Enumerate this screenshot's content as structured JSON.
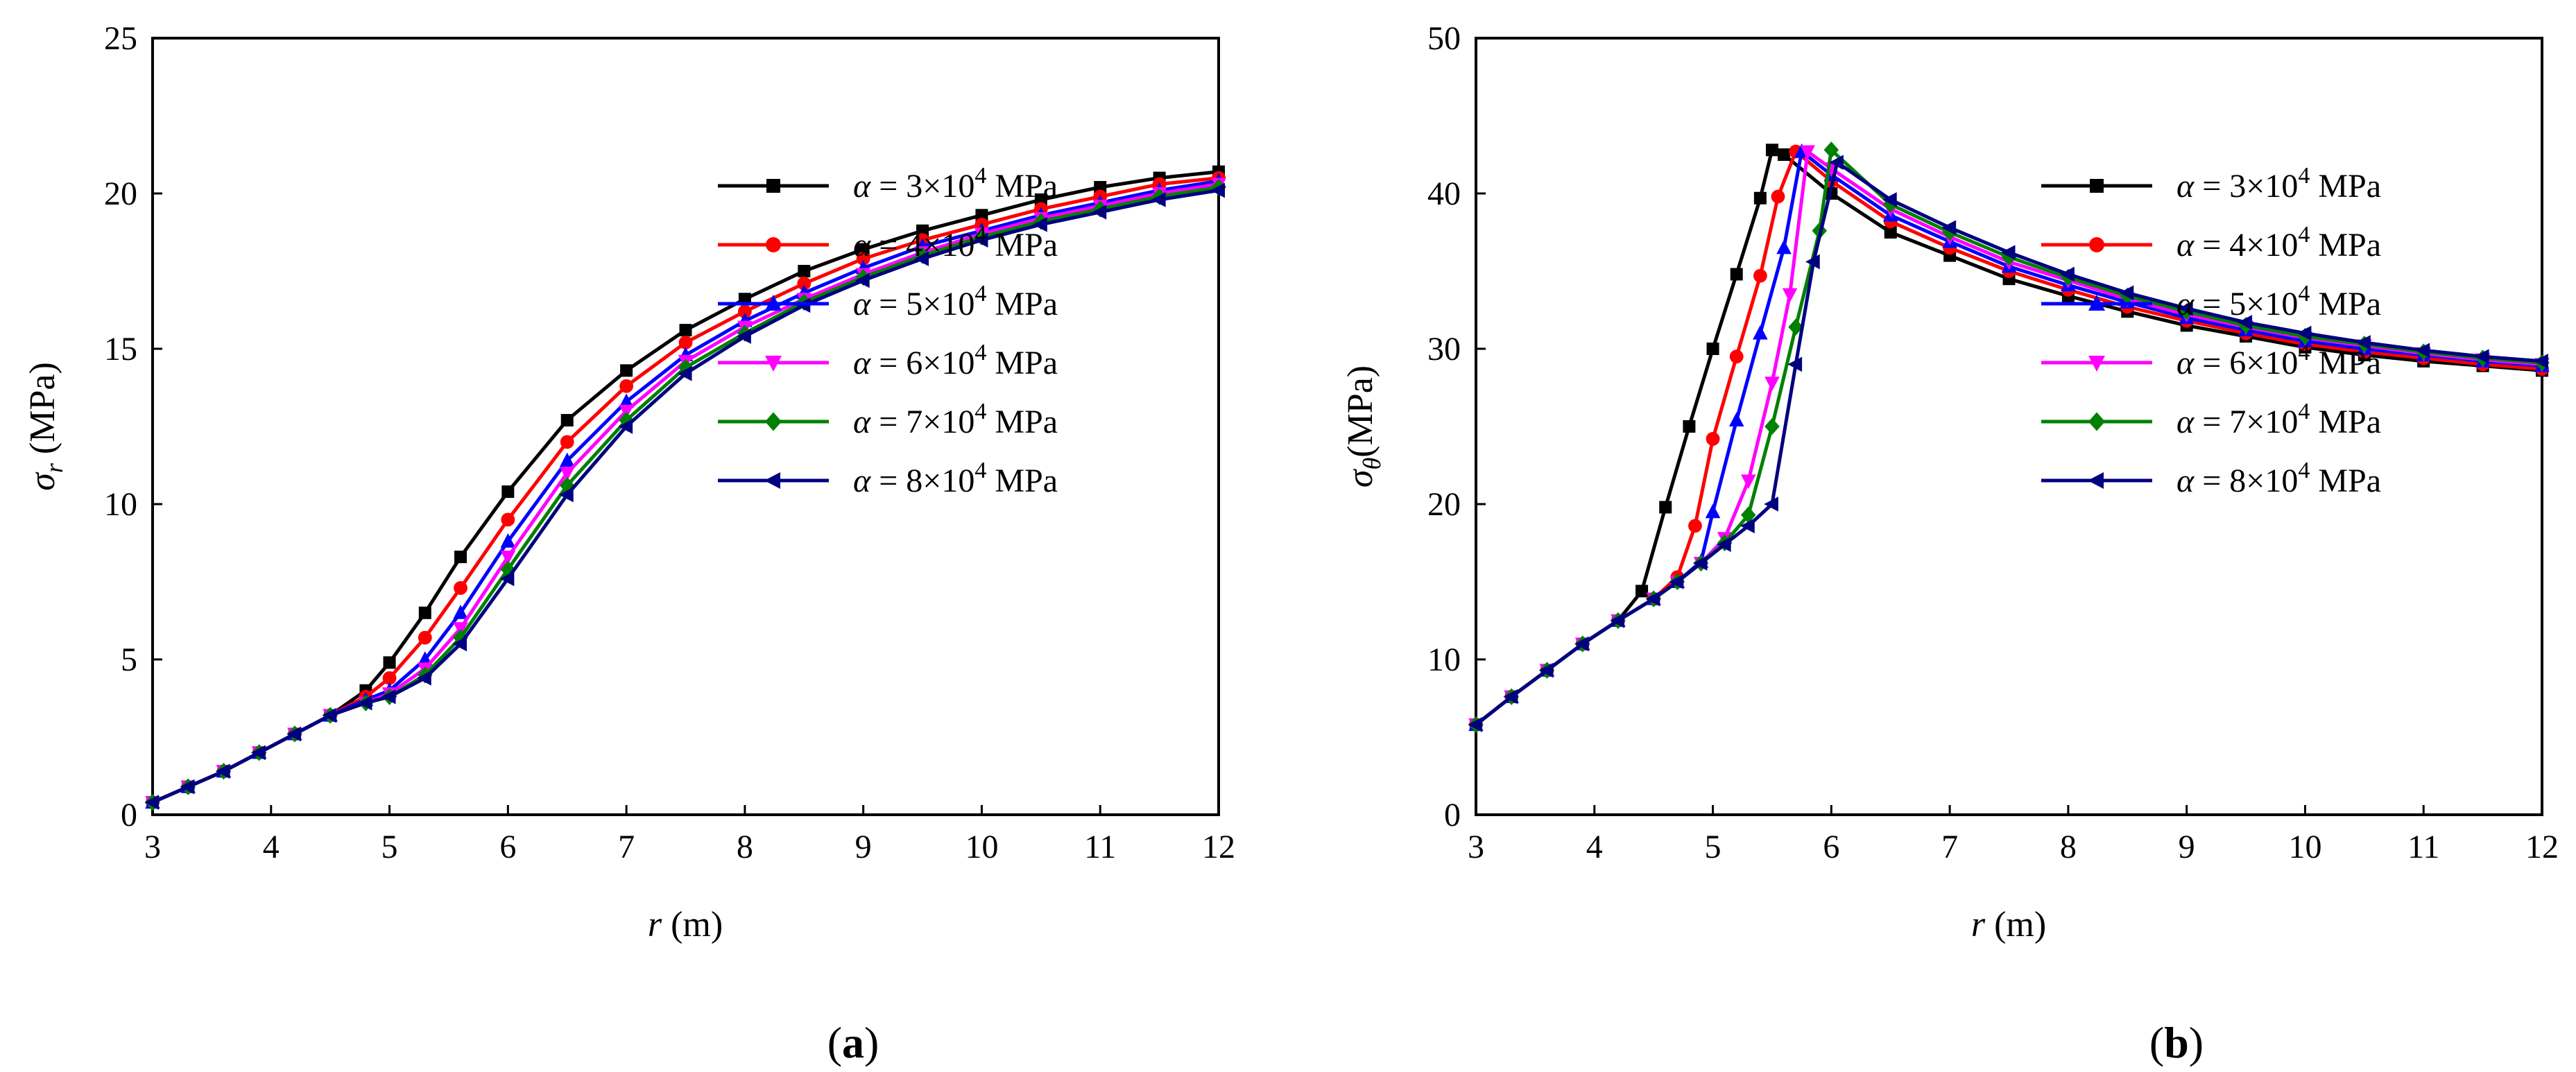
{
  "charts": [
    {
      "panel": "(a)",
      "panel_letter": "a",
      "ylabel_symbol": "σ",
      "ylabel_sub": "r",
      "ylabel_unit": " (MPa)",
      "xlabel_symbol": "r",
      "xlabel_unit": " (m)"
    },
    {
      "panel": "(b)",
      "panel_letter": "b",
      "ylabel_symbol": "σ",
      "ylabel_sub": "θ",
      "ylabel_unit": "(MPa)",
      "xlabel_symbol": "r",
      "xlabel_unit": " (m)"
    }
  ],
  "legend": [
    {
      "alpha_symbol": "α",
      "prefix": " = 3×10",
      "exp": "4",
      "unit": " MPa"
    },
    {
      "alpha_symbol": "α",
      "prefix": " = 4×10",
      "exp": "4",
      "unit": " MPa"
    },
    {
      "alpha_symbol": "α",
      "prefix": " = 5×10",
      "exp": "4",
      "unit": " MPa"
    },
    {
      "alpha_symbol": "α",
      "prefix": " = 6×10",
      "exp": "4",
      "unit": " MPa"
    },
    {
      "alpha_symbol": "α",
      "prefix": " = 7×10",
      "exp": "4",
      "unit": " MPa"
    },
    {
      "alpha_symbol": "α",
      "prefix": " = 8×10",
      "exp": "4",
      "unit": " MPa"
    }
  ],
  "chart_data": [
    {
      "type": "line",
      "title": "(a)",
      "xlabel": "r (m)",
      "ylabel": "σr (MPa)",
      "xlim": [
        3,
        12
      ],
      "ylim": [
        0,
        25
      ],
      "xticks": [
        "3",
        "4",
        "5",
        "6",
        "7",
        "8",
        "9",
        "10",
        "11",
        "12"
      ],
      "yticks": [
        "0",
        "5",
        "10",
        "15",
        "20",
        "25"
      ],
      "grid": false,
      "legend_position": "center-right",
      "series": [
        {
          "name": "α = 3×10⁴ MPa",
          "color": "#000000",
          "marker": "square",
          "x": [
            3,
            3.3,
            3.6,
            3.9,
            4.2,
            4.5,
            4.8,
            5.0,
            5.3,
            5.6,
            6.0,
            6.5,
            7.0,
            7.5,
            8.0,
            8.5,
            9.0,
            9.5,
            10.0,
            10.5,
            11.0,
            11.5,
            12.0
          ],
          "y": [
            0.4,
            0.9,
            1.4,
            2.0,
            2.6,
            3.2,
            4.0,
            4.9,
            6.5,
            8.3,
            10.4,
            12.7,
            14.3,
            15.6,
            16.6,
            17.5,
            18.2,
            18.8,
            19.3,
            19.8,
            20.2,
            20.5,
            20.7
          ]
        },
        {
          "name": "α = 4×10⁴ MPa",
          "color": "#ff0000",
          "marker": "circle",
          "x": [
            3,
            3.3,
            3.6,
            3.9,
            4.2,
            4.5,
            4.8,
            5.0,
            5.3,
            5.6,
            6.0,
            6.5,
            7.0,
            7.5,
            8.0,
            8.5,
            9.0,
            9.5,
            10.0,
            10.5,
            11.0,
            11.5,
            12.0
          ],
          "y": [
            0.4,
            0.9,
            1.4,
            2.0,
            2.6,
            3.2,
            3.8,
            4.4,
            5.7,
            7.3,
            9.5,
            12.0,
            13.8,
            15.2,
            16.2,
            17.1,
            17.9,
            18.5,
            19.0,
            19.5,
            19.9,
            20.3,
            20.5
          ]
        },
        {
          "name": "α = 5×10⁴ MPa",
          "color": "#0000ff",
          "marker": "triangle-up",
          "x": [
            3,
            3.3,
            3.6,
            3.9,
            4.2,
            4.5,
            4.8,
            5.0,
            5.3,
            5.6,
            6.0,
            6.5,
            7.0,
            7.5,
            8.0,
            8.5,
            9.0,
            9.5,
            10.0,
            10.5,
            11.0,
            11.5,
            12.0
          ],
          "y": [
            0.4,
            0.9,
            1.4,
            2.0,
            2.6,
            3.2,
            3.7,
            4.0,
            5.0,
            6.5,
            8.8,
            11.4,
            13.3,
            14.8,
            15.9,
            16.8,
            17.6,
            18.3,
            18.8,
            19.3,
            19.7,
            20.1,
            20.4
          ]
        },
        {
          "name": "α = 6×10⁴ MPa",
          "color": "#ff00ff",
          "marker": "triangle-down",
          "x": [
            3,
            3.3,
            3.6,
            3.9,
            4.2,
            4.5,
            4.8,
            5.0,
            5.3,
            5.6,
            6.0,
            6.5,
            7.0,
            7.5,
            8.0,
            8.5,
            9.0,
            9.5,
            10.0,
            10.5,
            11.0,
            11.5,
            12.0
          ],
          "y": [
            0.4,
            0.9,
            1.4,
            2.0,
            2.6,
            3.2,
            3.6,
            3.9,
            4.7,
            6.0,
            8.3,
            11.0,
            13.0,
            14.6,
            15.7,
            16.6,
            17.4,
            18.1,
            18.7,
            19.2,
            19.6,
            20.0,
            20.3
          ]
        },
        {
          "name": "α = 7×10⁴ MPa",
          "color": "#008000",
          "marker": "diamond",
          "x": [
            3,
            3.3,
            3.6,
            3.9,
            4.2,
            4.5,
            4.8,
            5.0,
            5.3,
            5.6,
            6.0,
            6.5,
            7.0,
            7.5,
            8.0,
            8.5,
            9.0,
            9.5,
            10.0,
            10.5,
            11.0,
            11.5,
            12.0
          ],
          "y": [
            0.4,
            0.9,
            1.4,
            2.0,
            2.6,
            3.2,
            3.6,
            3.8,
            4.5,
            5.7,
            7.9,
            10.6,
            12.7,
            14.4,
            15.5,
            16.5,
            17.3,
            18.0,
            18.6,
            19.1,
            19.5,
            19.9,
            20.2
          ]
        },
        {
          "name": "α = 8×10⁴ MPa",
          "color": "#000080",
          "marker": "triangle-left",
          "x": [
            3,
            3.3,
            3.6,
            3.9,
            4.2,
            4.5,
            4.8,
            5.0,
            5.3,
            5.6,
            6.0,
            6.5,
            7.0,
            7.5,
            8.0,
            8.5,
            9.0,
            9.5,
            10.0,
            10.5,
            11.0,
            11.5,
            12.0
          ],
          "y": [
            0.4,
            0.9,
            1.4,
            2.0,
            2.6,
            3.2,
            3.6,
            3.8,
            4.4,
            5.5,
            7.6,
            10.3,
            12.5,
            14.2,
            15.4,
            16.4,
            17.2,
            17.9,
            18.5,
            19.0,
            19.4,
            19.8,
            20.1
          ]
        }
      ]
    },
    {
      "type": "line",
      "title": "(b)",
      "xlabel": "r (m)",
      "ylabel": "σθ(MPa)",
      "xlim": [
        3,
        12
      ],
      "ylim": [
        0,
        50
      ],
      "xticks": [
        "3",
        "4",
        "5",
        "6",
        "7",
        "8",
        "9",
        "10",
        "11",
        "12"
      ],
      "yticks": [
        "0",
        "10",
        "20",
        "30",
        "40",
        "50"
      ],
      "grid": false,
      "legend_position": "center-right",
      "series": [
        {
          "name": "α = 3×10⁴ MPa",
          "color": "#000000",
          "marker": "square",
          "x": [
            3,
            3.3,
            3.6,
            3.9,
            4.2,
            4.4,
            4.6,
            4.8,
            5.0,
            5.2,
            5.4,
            5.5,
            5.6,
            6.0,
            6.5,
            7.0,
            7.5,
            8.0,
            8.5,
            9.0,
            9.5,
            10.0,
            10.5,
            11.0,
            11.5,
            12.0
          ],
          "y": [
            5.8,
            7.6,
            9.3,
            11.0,
            12.5,
            14.4,
            19.8,
            25.0,
            30.0,
            34.8,
            39.7,
            42.8,
            42.5,
            40.0,
            37.5,
            36.0,
            34.5,
            33.4,
            32.4,
            31.5,
            30.8,
            30.1,
            29.6,
            29.2,
            28.9,
            28.6
          ]
        },
        {
          "name": "α = 4×10⁴ MPa",
          "color": "#ff0000",
          "marker": "circle",
          "x": [
            3,
            3.3,
            3.6,
            3.9,
            4.2,
            4.5,
            4.7,
            4.85,
            5.0,
            5.2,
            5.4,
            5.55,
            5.7,
            6.0,
            6.5,
            7.0,
            7.5,
            8.0,
            8.5,
            9.0,
            9.5,
            10.0,
            10.5,
            11.0,
            11.5,
            12.0
          ],
          "y": [
            5.8,
            7.6,
            9.3,
            11.0,
            12.5,
            13.9,
            15.3,
            18.6,
            24.2,
            29.5,
            34.7,
            39.8,
            42.7,
            40.8,
            38.2,
            36.5,
            35.0,
            33.8,
            32.7,
            31.8,
            31.0,
            30.3,
            29.8,
            29.4,
            29.0,
            28.7
          ]
        },
        {
          "name": "α = 5×10⁴ MPa",
          "color": "#0000ff",
          "marker": "triangle-up",
          "x": [
            3,
            3.3,
            3.6,
            3.9,
            4.2,
            4.5,
            4.7,
            4.9,
            5.0,
            5.2,
            5.4,
            5.6,
            5.75,
            6.0,
            6.5,
            7.0,
            7.5,
            8.0,
            8.5,
            9.0,
            9.5,
            10.0,
            10.5,
            11.0,
            11.5,
            12.0
          ],
          "y": [
            5.8,
            7.6,
            9.3,
            11.0,
            12.5,
            13.9,
            15.0,
            16.3,
            19.5,
            25.4,
            31.0,
            36.5,
            42.7,
            41.2,
            38.6,
            36.9,
            35.3,
            34.1,
            33.0,
            32.0,
            31.2,
            30.5,
            30.0,
            29.6,
            29.2,
            28.9
          ]
        },
        {
          "name": "α = 6×10⁴ MPa",
          "color": "#ff00ff",
          "marker": "triangle-down",
          "x": [
            3,
            3.3,
            3.6,
            3.9,
            4.2,
            4.5,
            4.7,
            4.9,
            5.1,
            5.3,
            5.5,
            5.65,
            5.8,
            6.0,
            6.5,
            7.0,
            7.5,
            8.0,
            8.5,
            9.0,
            9.5,
            10.0,
            10.5,
            11.0,
            11.5,
            12.0
          ],
          "y": [
            5.8,
            7.6,
            9.3,
            11.0,
            12.5,
            13.9,
            15.0,
            16.2,
            17.8,
            21.5,
            27.8,
            33.5,
            42.7,
            41.6,
            39.0,
            37.2,
            35.6,
            34.4,
            33.2,
            32.2,
            31.4,
            30.7,
            30.2,
            29.7,
            29.3,
            29.0
          ]
        },
        {
          "name": "α = 7×10⁴ MPa",
          "color": "#008000",
          "marker": "diamond",
          "x": [
            3,
            3.3,
            3.6,
            3.9,
            4.2,
            4.5,
            4.7,
            4.9,
            5.1,
            5.3,
            5.5,
            5.7,
            5.9,
            6.0,
            6.5,
            7.0,
            7.5,
            8.0,
            8.5,
            9.0,
            9.5,
            10.0,
            10.5,
            11.0,
            11.5,
            12.0
          ],
          "y": [
            5.8,
            7.6,
            9.3,
            11.0,
            12.5,
            13.9,
            15.0,
            16.2,
            17.5,
            19.3,
            25.0,
            31.4,
            37.6,
            42.8,
            39.3,
            37.5,
            35.9,
            34.6,
            33.4,
            32.4,
            31.5,
            30.8,
            30.3,
            29.8,
            29.4,
            29.1
          ]
        },
        {
          "name": "α = 8×10⁴ MPa",
          "color": "#000080",
          "marker": "triangle-left",
          "x": [
            3,
            3.3,
            3.6,
            3.9,
            4.2,
            4.5,
            4.7,
            4.9,
            5.1,
            5.3,
            5.5,
            5.7,
            5.85,
            6.05,
            6.5,
            7.0,
            7.5,
            8.0,
            8.5,
            9.0,
            9.5,
            10.0,
            10.5,
            11.0,
            11.5,
            12.0
          ],
          "y": [
            5.8,
            7.6,
            9.3,
            11.0,
            12.5,
            13.9,
            15.0,
            16.2,
            17.4,
            18.6,
            20.0,
            29.0,
            35.6,
            42.0,
            39.6,
            37.8,
            36.2,
            34.8,
            33.6,
            32.6,
            31.7,
            31.0,
            30.4,
            29.9,
            29.5,
            29.2
          ]
        }
      ]
    }
  ]
}
